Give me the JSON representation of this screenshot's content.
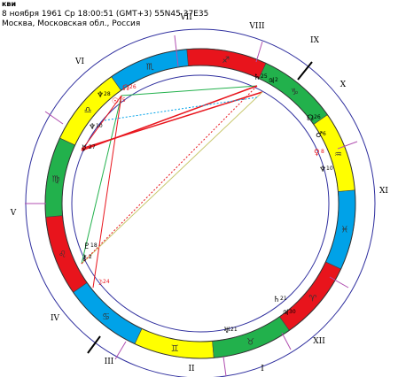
{
  "header": {
    "name": "кви",
    "line1": "8 ноября 1961  Ср  18:00:51 (GMT+3) 55N45  37E35",
    "line2": "Москва, Московская обл., Россия"
  },
  "houses": [
    "I",
    "II",
    "III",
    "IV",
    "V",
    "VI",
    "VII",
    "VIII",
    "IX",
    "X",
    "XI",
    "XII"
  ],
  "zodiac": {
    "glyphs": [
      "♈",
      "♉",
      "♊",
      "♋",
      "♌",
      "♍",
      "♎",
      "♏",
      "♐",
      "♑",
      "♒",
      "♓"
    ],
    "colors": [
      "#e8141c",
      "#22b14c",
      "#ffff00",
      "#00a2e8",
      "#e8141c",
      "#22b14c",
      "#ffff00",
      "#00a2e8",
      "#e8141c",
      "#22b14c",
      "#ffff00",
      "#00a2e8"
    ]
  },
  "planets": [
    {
      "glyph": "♄",
      "deg": "25",
      "color": "#000000"
    },
    {
      "glyph": "♃",
      "deg": "2",
      "color": "#000000"
    },
    {
      "glyph": "☊",
      "deg": "26",
      "color": "#000000"
    },
    {
      "glyph": "♂",
      "deg": "6",
      "color": "#000000"
    },
    {
      "glyph": "♀",
      "deg": "8",
      "color": "#e8141c"
    },
    {
      "glyph": "♆",
      "deg": "10",
      "color": "#000000"
    },
    {
      "glyph": "♄",
      "deg": "21",
      "color": "#000000"
    },
    {
      "glyph": "♃",
      "deg": "30",
      "color": "#000000"
    },
    {
      "glyph": "♅",
      "deg": "21",
      "color": "#000000"
    },
    {
      "glyph": "♇",
      "deg": "18",
      "color": "#000000"
    },
    {
      "glyph": "⚷",
      "deg": "2",
      "color": "#000000"
    },
    {
      "glyph": "☽",
      "deg": "24",
      "color": "#e8141c"
    },
    {
      "glyph": "♆",
      "deg": "28",
      "color": "#000000"
    },
    {
      "glyph": "☿",
      "deg": "27",
      "color": "#000000"
    },
    {
      "glyph": "♆",
      "deg": "10",
      "color": "#000000"
    },
    {
      "glyph": "☉",
      "deg": "15",
      "color": "#e8141c"
    },
    {
      "glyph": "☊",
      "deg": "26",
      "color": "#e8141c"
    }
  ]
}
